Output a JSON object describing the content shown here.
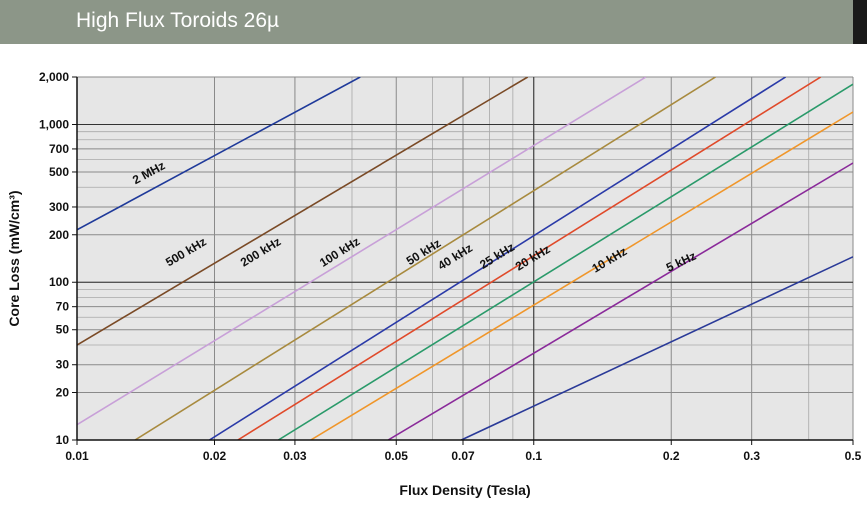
{
  "header": {
    "title": "High Flux Toroids 26µ"
  },
  "chart_data": {
    "type": "line",
    "title": "High Flux Toroids 26µ",
    "xlabel": "Flux Density (Tesla)",
    "ylabel": "Core Loss (mW/cm³)",
    "xscale": "log",
    "yscale": "log",
    "xlim": [
      0.01,
      0.5
    ],
    "ylim": [
      10,
      2000
    ],
    "grid": true,
    "background": "#e6e6e6",
    "x_ticks": [
      {
        "value": 0.01,
        "label": "0.01"
      },
      {
        "value": 0.02,
        "label": "0.02"
      },
      {
        "value": 0.03,
        "label": "0.03"
      },
      {
        "value": 0.05,
        "label": "0.05"
      },
      {
        "value": 0.07,
        "label": "0.07"
      },
      {
        "value": 0.1,
        "label": "0.1"
      },
      {
        "value": 0.2,
        "label": "0.2"
      },
      {
        "value": 0.3,
        "label": "0.3"
      },
      {
        "value": 0.5,
        "label": "0.5"
      }
    ],
    "y_ticks": [
      {
        "value": 10,
        "label": "10"
      },
      {
        "value": 20,
        "label": "20"
      },
      {
        "value": 30,
        "label": "30"
      },
      {
        "value": 50,
        "label": "50"
      },
      {
        "value": 70,
        "label": "70"
      },
      {
        "value": 100,
        "label": "100"
      },
      {
        "value": 200,
        "label": "200"
      },
      {
        "value": 300,
        "label": "300"
      },
      {
        "value": 500,
        "label": "500"
      },
      {
        "value": 700,
        "label": "700"
      },
      {
        "value": 1000,
        "label": "1,000"
      },
      {
        "value": 2000,
        "label": "2,000"
      }
    ],
    "x_gridlines": [
      0.01,
      0.02,
      0.03,
      0.04,
      0.05,
      0.06,
      0.07,
      0.08,
      0.09,
      0.1,
      0.2,
      0.3,
      0.4,
      0.5
    ],
    "y_gridlines": [
      10,
      20,
      30,
      40,
      50,
      60,
      70,
      80,
      90,
      100,
      200,
      300,
      400,
      500,
      600,
      700,
      800,
      900,
      1000,
      2000
    ],
    "series": [
      {
        "name": "2 MHz",
        "color": "#1f3a9a",
        "points": [
          [
            0.01,
            215
          ],
          [
            0.0417,
            2000
          ]
        ],
        "label_at": [
          0.0145,
          470
        ]
      },
      {
        "name": "500 kHz",
        "color": "#7a4a26",
        "points": [
          [
            0.01,
            40
          ],
          [
            0.097,
            2000
          ]
        ],
        "label_at": [
          0.0175,
          148
        ]
      },
      {
        "name": "200 kHz",
        "color": "#c8a0d8",
        "points": [
          [
            0.01,
            12.5
          ],
          [
            0.176,
            2000
          ]
        ],
        "label_at": [
          0.0255,
          148
        ]
      },
      {
        "name": "100 kHz",
        "color": "#a88a3e",
        "points": [
          [
            0.0134,
            10
          ],
          [
            0.25,
            2000
          ]
        ],
        "label_at": [
          0.038,
          148
        ]
      },
      {
        "name": "50 kHz",
        "color": "#2a3aa8",
        "points": [
          [
            0.0195,
            10
          ],
          [
            0.356,
            2000
          ]
        ],
        "label_at": [
          0.058,
          148
        ]
      },
      {
        "name": "40 kHz",
        "color": "#e04a2a",
        "points": [
          [
            0.0225,
            10
          ],
          [
            0.425,
            2000
          ]
        ],
        "label_at": [
          0.068,
          138
        ]
      },
      {
        "name": "25 kHz",
        "color": "#2a9a6a",
        "points": [
          [
            0.0276,
            10
          ],
          [
            0.5,
            1800
          ]
        ],
        "label_at": [
          0.084,
          140
        ]
      },
      {
        "name": "20 kHz",
        "color": "#f0962a",
        "points": [
          [
            0.0325,
            10
          ],
          [
            0.5,
            1200
          ]
        ],
        "label_at": [
          0.1005,
          136
        ]
      },
      {
        "name": "10 kHz",
        "color": "#8a2a9a",
        "points": [
          [
            0.048,
            10
          ],
          [
            0.5,
            570
          ]
        ],
        "label_at": [
          0.148,
          132
        ]
      },
      {
        "name": "5 kHz",
        "color": "#2a3a98",
        "points": [
          [
            0.0694,
            10
          ],
          [
            0.5,
            145
          ]
        ],
        "label_at": [
          0.212,
          128
        ]
      }
    ]
  }
}
